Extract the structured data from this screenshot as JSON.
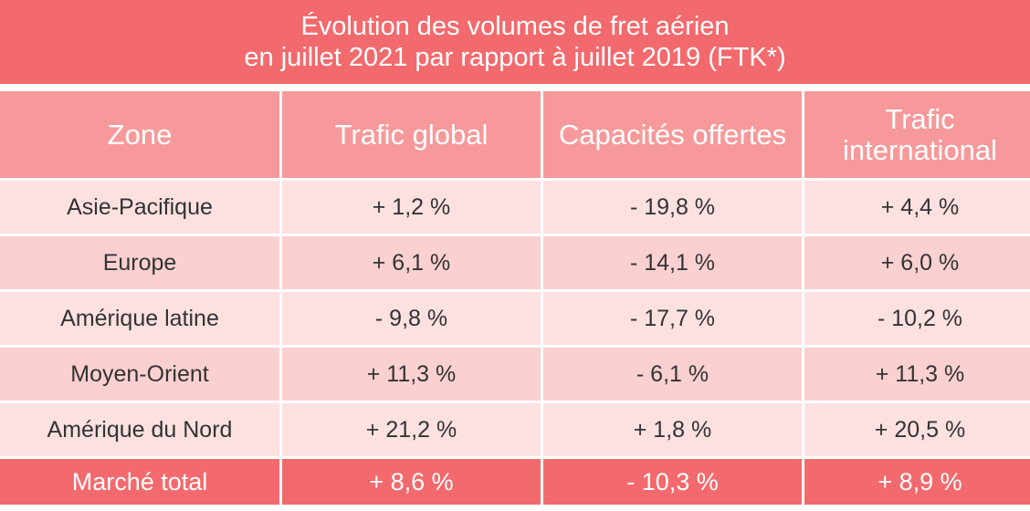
{
  "title": {
    "line1": "Évolution des volumes de fret aérien",
    "line2": "en juillet 2021 par rapport à juillet 2019 (FTK*)"
  },
  "table": {
    "headers": [
      "Zone",
      "Trafic global",
      "Capacités offertes",
      "Trafic international"
    ],
    "header_last_line1": "Trafic",
    "header_last_line2": "international",
    "rows": [
      [
        "Asie-Pacifique",
        "+ 1,2 %",
        "- 19,8 %",
        "+ 4,4 %"
      ],
      [
        "Europe",
        "+ 6,1 %",
        "- 14,1 %",
        "+ 6,0 %"
      ],
      [
        "Amérique latine",
        "- 9,8 %",
        "- 17,7 %",
        "- 10,2 %"
      ],
      [
        "Moyen-Orient",
        "+ 11,3 %",
        "- 6,1 %",
        "+ 11,3 %"
      ],
      [
        "Amérique du Nord",
        "+ 21,2 %",
        "+ 1,8 %",
        "+ 20,5 %"
      ]
    ],
    "total": [
      "Marché total",
      "+ 8,6 %",
      "- 10,3 %",
      "+ 8,9 %"
    ]
  },
  "colors": {
    "title_bg": "#f26a6d",
    "header_bg": "#f7999a",
    "row_light": "#fde1e1",
    "row_mid": "#fbd0d1",
    "total_bg": "#f26a6d"
  }
}
